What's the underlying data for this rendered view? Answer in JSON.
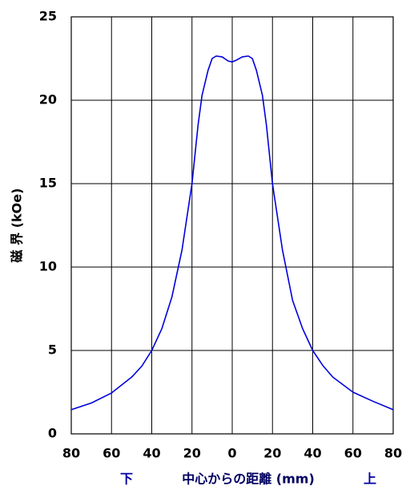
{
  "chart_data": {
    "type": "line",
    "ylabel": "磁 界 (kOe)",
    "xlabel": "中心からの距離 (mm)",
    "x_label_left": "下",
    "x_label_right": "上",
    "x_side_label_color": "#0000a0",
    "xlim": [
      -80,
      80
    ],
    "ylim": [
      0,
      25
    ],
    "xticks": [
      {
        "value": -80,
        "label": "80"
      },
      {
        "value": -60,
        "label": "60"
      },
      {
        "value": -40,
        "label": "40"
      },
      {
        "value": -20,
        "label": "20"
      },
      0,
      20,
      40,
      60,
      80
    ],
    "yticks": [
      0,
      5,
      10,
      15,
      20,
      25
    ],
    "grid": true,
    "series": [
      {
        "color": "#0000dd",
        "x": [
          -80,
          -70,
          -60,
          -50,
          -45,
          -40,
          -35,
          -30,
          -25,
          -20,
          -17,
          -15,
          -12,
          -10,
          -8,
          -5,
          -2,
          0,
          2,
          5,
          8,
          10,
          12,
          15,
          17,
          20,
          25,
          30,
          35,
          40,
          45,
          50,
          60,
          70,
          80
        ],
        "values": [
          1.45,
          1.85,
          2.45,
          3.4,
          4.05,
          5.0,
          6.3,
          8.2,
          11.0,
          15.0,
          18.5,
          20.3,
          21.8,
          22.5,
          22.65,
          22.6,
          22.35,
          22.3,
          22.4,
          22.6,
          22.65,
          22.5,
          21.8,
          20.3,
          18.5,
          15.0,
          11.0,
          8.0,
          6.3,
          5.0,
          4.1,
          3.4,
          2.5,
          1.95,
          1.45
        ]
      }
    ]
  }
}
